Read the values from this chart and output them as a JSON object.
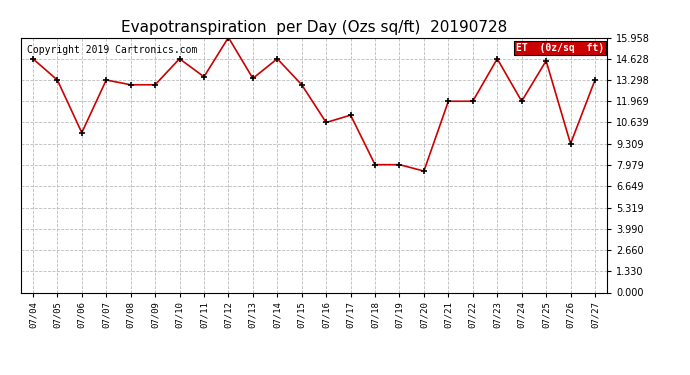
{
  "title": "Evapotranspiration  per Day (Ozs sq/ft)  20190728",
  "copyright_text": "Copyright 2019 Cartronics.com",
  "legend_label": "ET  (0z/sq  ft)",
  "dates": [
    "07/04",
    "07/05",
    "07/06",
    "07/07",
    "07/08",
    "07/09",
    "07/10",
    "07/11",
    "07/12",
    "07/13",
    "07/14",
    "07/15",
    "07/16",
    "07/17",
    "07/18",
    "07/19",
    "07/20",
    "07/21",
    "07/22",
    "07/23",
    "07/24",
    "07/25",
    "07/26",
    "07/27"
  ],
  "values": [
    14.628,
    13.298,
    10.0,
    13.298,
    13.0,
    13.0,
    14.628,
    13.5,
    15.958,
    13.4,
    14.628,
    13.0,
    10.639,
    11.1,
    8.0,
    8.0,
    7.6,
    11.969,
    11.969,
    14.628,
    11.969,
    14.5,
    9.309,
    13.298
  ],
  "yticks": [
    0.0,
    1.33,
    2.66,
    3.99,
    5.319,
    6.649,
    7.979,
    9.309,
    10.639,
    11.969,
    13.298,
    14.628,
    15.958
  ],
  "ymin": 0.0,
  "ymax": 15.958,
  "line_color": "#cc0000",
  "marker_color": "#000000",
  "bg_color": "#ffffff",
  "plot_bg_color": "#ffffff",
  "grid_color": "#bbbbbb",
  "title_fontsize": 11,
  "copyright_fontsize": 7,
  "legend_bg_color": "#cc0000",
  "legend_text_color": "#ffffff"
}
